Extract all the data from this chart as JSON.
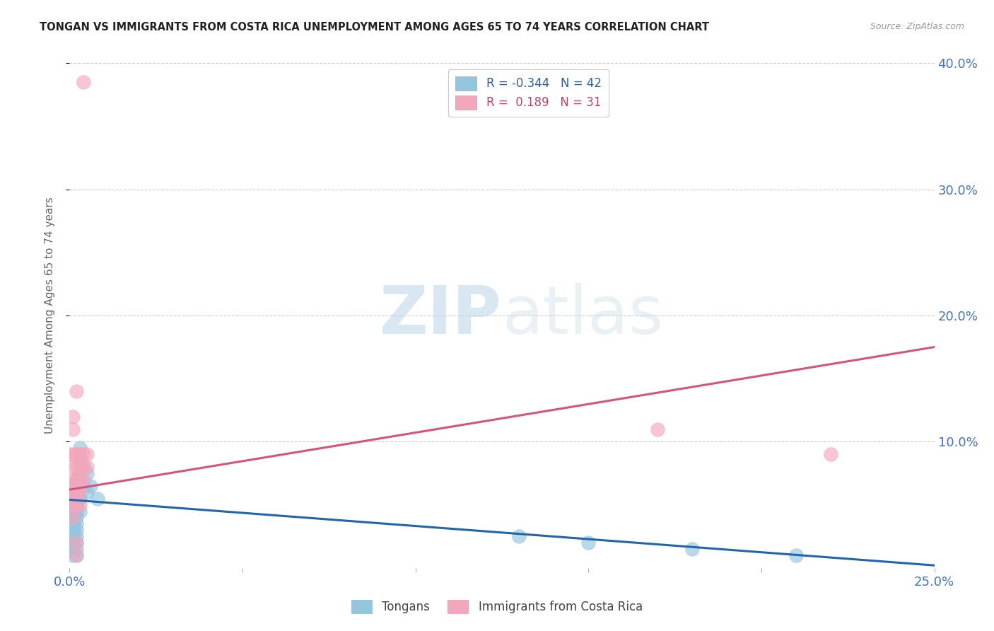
{
  "title": "TONGAN VS IMMIGRANTS FROM COSTA RICA UNEMPLOYMENT AMONG AGES 65 TO 74 YEARS CORRELATION CHART",
  "source": "Source: ZipAtlas.com",
  "ylabel_label": "Unemployment Among Ages 65 to 74 years",
  "watermark_zip": "ZIP",
  "watermark_atlas": "atlas",
  "legend_blue_r": "R = -0.344",
  "legend_blue_n": "N = 42",
  "legend_pink_r": "R =  0.189",
  "legend_pink_n": "N = 31",
  "legend_label_blue": "Tongans",
  "legend_label_pink": "Immigrants from Costa Rica",
  "blue_color": "#92c5de",
  "pink_color": "#f4a6bc",
  "blue_line_color": "#2166ac",
  "pink_line_color": "#d6547a",
  "xlim": [
    0.0,
    0.25
  ],
  "ylim": [
    0.0,
    0.4
  ],
  "blue_trend": [
    0.0,
    0.25,
    0.054,
    0.002
  ],
  "pink_trend": [
    0.0,
    0.25,
    0.062,
    0.175
  ],
  "blue_points": [
    [
      0.0,
      0.045
    ],
    [
      0.0,
      0.05
    ],
    [
      0.001,
      0.065
    ],
    [
      0.001,
      0.06
    ],
    [
      0.001,
      0.055
    ],
    [
      0.001,
      0.05
    ],
    [
      0.001,
      0.045
    ],
    [
      0.001,
      0.04
    ],
    [
      0.001,
      0.035
    ],
    [
      0.001,
      0.03
    ],
    [
      0.001,
      0.025
    ],
    [
      0.001,
      0.02
    ],
    [
      0.001,
      0.015
    ],
    [
      0.001,
      0.01
    ],
    [
      0.002,
      0.07
    ],
    [
      0.002,
      0.06
    ],
    [
      0.002,
      0.055
    ],
    [
      0.002,
      0.05
    ],
    [
      0.002,
      0.045
    ],
    [
      0.002,
      0.04
    ],
    [
      0.002,
      0.035
    ],
    [
      0.002,
      0.03
    ],
    [
      0.002,
      0.025
    ],
    [
      0.002,
      0.02
    ],
    [
      0.002,
      0.015
    ],
    [
      0.002,
      0.01
    ],
    [
      0.003,
      0.095
    ],
    [
      0.003,
      0.085
    ],
    [
      0.003,
      0.075
    ],
    [
      0.003,
      0.065
    ],
    [
      0.003,
      0.055
    ],
    [
      0.003,
      0.045
    ],
    [
      0.004,
      0.08
    ],
    [
      0.004,
      0.065
    ],
    [
      0.005,
      0.075
    ],
    [
      0.005,
      0.06
    ],
    [
      0.006,
      0.065
    ],
    [
      0.008,
      0.055
    ],
    [
      0.13,
      0.025
    ],
    [
      0.15,
      0.02
    ],
    [
      0.18,
      0.015
    ],
    [
      0.21,
      0.01
    ]
  ],
  "pink_points": [
    [
      0.0,
      0.055
    ],
    [
      0.0,
      0.09
    ],
    [
      0.001,
      0.12
    ],
    [
      0.001,
      0.11
    ],
    [
      0.001,
      0.09
    ],
    [
      0.001,
      0.08
    ],
    [
      0.001,
      0.07
    ],
    [
      0.001,
      0.06
    ],
    [
      0.001,
      0.05
    ],
    [
      0.001,
      0.04
    ],
    [
      0.002,
      0.14
    ],
    [
      0.002,
      0.09
    ],
    [
      0.002,
      0.08
    ],
    [
      0.002,
      0.07
    ],
    [
      0.002,
      0.06
    ],
    [
      0.002,
      0.05
    ],
    [
      0.002,
      0.02
    ],
    [
      0.002,
      0.01
    ],
    [
      0.003,
      0.09
    ],
    [
      0.003,
      0.08
    ],
    [
      0.003,
      0.07
    ],
    [
      0.003,
      0.06
    ],
    [
      0.003,
      0.05
    ],
    [
      0.004,
      0.385
    ],
    [
      0.004,
      0.09
    ],
    [
      0.004,
      0.08
    ],
    [
      0.004,
      0.07
    ],
    [
      0.005,
      0.09
    ],
    [
      0.005,
      0.08
    ],
    [
      0.17,
      0.11
    ],
    [
      0.22,
      0.09
    ]
  ]
}
